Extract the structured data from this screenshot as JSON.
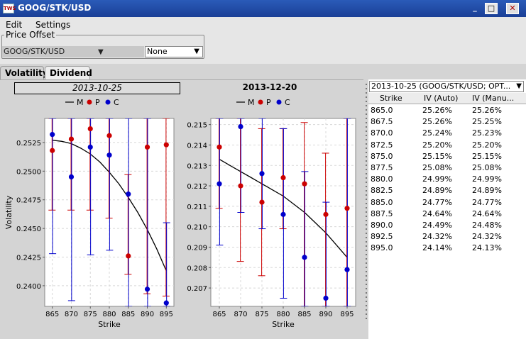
{
  "window": {
    "title": "GOOG/STK/USD",
    "icon": "app-icon"
  },
  "menu": {
    "items": [
      "Edit",
      "Settings"
    ]
  },
  "price_offset": {
    "label": "Price Offset",
    "symbol": "GOOG/STK/USD",
    "mode": "None"
  },
  "tabs": [
    {
      "label": "Volatility",
      "active": true
    },
    {
      "label": "Dividend",
      "active": false
    }
  ],
  "colors": {
    "mid": "#000000",
    "put": "#cc0000",
    "call": "#0000cc",
    "titlebar": "#1a3f96"
  },
  "chart_data": [
    {
      "type": "scatter",
      "title": "2013-10-25",
      "xlabel": "Strike",
      "ylabel": "Volatility",
      "legend": [
        "M",
        "P",
        "C"
      ],
      "legend_position": "top-center",
      "x": [
        865,
        870,
        875,
        880,
        885,
        890,
        895
      ],
      "xlim": [
        863,
        897
      ],
      "ylim": [
        0.2382,
        0.2546
      ],
      "yticks": [
        0.24,
        0.2425,
        0.245,
        0.2475,
        0.25,
        0.2525
      ],
      "ytick_labels": [
        "0.2400",
        "0.2425",
        "0.2450",
        "0.2475",
        "0.2500",
        "0.2525"
      ],
      "grid": true,
      "series": [
        {
          "name": "M",
          "style": "line",
          "points": [
            [
              865,
              0.2527
            ],
            [
              867.5,
              0.2526
            ],
            [
              870,
              0.2524
            ],
            [
              872.5,
              0.252
            ],
            [
              875,
              0.2515
            ],
            [
              877.5,
              0.2508
            ],
            [
              880,
              0.2499
            ],
            [
              882.5,
              0.2489
            ],
            [
              885,
              0.2477
            ],
            [
              887.5,
              0.2464
            ],
            [
              890,
              0.2449
            ],
            [
              892.5,
              0.2432
            ],
            [
              895,
              0.2413
            ]
          ]
        },
        {
          "name": "P",
          "values": [
            0.2518,
            0.2528,
            0.2537,
            0.2531,
            0.2426,
            0.2521,
            0.2523
          ],
          "err_low": [
            0.2466,
            0.2466,
            0.2466,
            0.2459,
            0.241,
            0.2393,
            0.2391
          ],
          "err_high": [
            0.2546,
            0.2546,
            0.2546,
            0.2546,
            0.2497,
            0.2546,
            0.2546
          ]
        },
        {
          "name": "C",
          "values": [
            0.2532,
            0.2495,
            0.2521,
            0.2514,
            0.248,
            0.2397,
            0.2385
          ],
          "err_low": [
            0.2428,
            0.2387,
            0.2427,
            0.2431,
            0.2382,
            0.2382,
            0.2382
          ],
          "err_high": [
            0.2546,
            0.2546,
            0.2546,
            0.2546,
            0.2546,
            0.2546,
            0.2455
          ]
        }
      ]
    },
    {
      "type": "scatter",
      "title": "2013-12-20",
      "xlabel": "Strike",
      "ylabel": "",
      "legend": [
        "M",
        "P",
        "C"
      ],
      "legend_position": "top-center",
      "x": [
        865,
        870,
        875,
        880,
        885,
        890,
        895
      ],
      "xlim": [
        863,
        897
      ],
      "ylim": [
        0.2061,
        0.2153
      ],
      "yticks": [
        0.207,
        0.208,
        0.209,
        0.21,
        0.211,
        0.212,
        0.213,
        0.214,
        0.215
      ],
      "ytick_labels": [
        "0.207",
        "0.208",
        "0.209",
        "0.210",
        "0.211",
        "0.212",
        "0.213",
        "0.214",
        "0.215"
      ],
      "grid": true,
      "series": [
        {
          "name": "M",
          "style": "line",
          "points": [
            [
              865,
              0.2133
            ],
            [
              867.5,
              0.213
            ],
            [
              870,
              0.2127
            ],
            [
              872.5,
              0.2124
            ],
            [
              875,
              0.2121
            ],
            [
              877.5,
              0.2118
            ],
            [
              880,
              0.2115
            ],
            [
              882.5,
              0.2111
            ],
            [
              885,
              0.2107
            ],
            [
              887.5,
              0.2102
            ],
            [
              890,
              0.2097
            ],
            [
              892.5,
              0.2091
            ],
            [
              895,
              0.2085
            ]
          ]
        },
        {
          "name": "P",
          "values": [
            0.2139,
            0.212,
            0.2112,
            0.2124,
            0.2121,
            0.2106,
            0.2109
          ],
          "err_low": [
            0.2109,
            0.2083,
            0.2076,
            0.2099,
            0.2061,
            0.2061,
            0.2061
          ],
          "err_high": [
            0.2153,
            0.2153,
            0.2148,
            0.2148,
            0.2151,
            0.2136,
            0.2153
          ]
        },
        {
          "name": "C",
          "values": [
            0.2121,
            0.2149,
            0.2126,
            0.2106,
            0.2085,
            0.2065,
            0.2079
          ],
          "err_low": [
            0.2091,
            0.2107,
            0.2099,
            0.2065,
            0.2061,
            0.2061,
            0.2061
          ],
          "err_high": [
            0.2153,
            0.2153,
            0.2153,
            0.2148,
            0.2127,
            0.2112,
            0.2153
          ]
        }
      ]
    }
  ],
  "table": {
    "expiry_select": "2013-10-25 (GOOG/STK/USD; OPT...",
    "headers": [
      "Strike",
      "IV (Auto)",
      "IV (Manu..."
    ],
    "rows": [
      [
        "865.0",
        "25.26%",
        "25.26%"
      ],
      [
        "867.5",
        "25.26%",
        "25.25%"
      ],
      [
        "870.0",
        "25.24%",
        "25.23%"
      ],
      [
        "872.5",
        "25.20%",
        "25.20%"
      ],
      [
        "875.0",
        "25.15%",
        "25.15%"
      ],
      [
        "877.5",
        "25.08%",
        "25.08%"
      ],
      [
        "880.0",
        "24.99%",
        "24.99%"
      ],
      [
        "882.5",
        "24.89%",
        "24.89%"
      ],
      [
        "885.0",
        "24.77%",
        "24.77%"
      ],
      [
        "887.5",
        "24.64%",
        "24.64%"
      ],
      [
        "890.0",
        "24.49%",
        "24.48%"
      ],
      [
        "892.5",
        "24.32%",
        "24.32%"
      ],
      [
        "895.0",
        "24.14%",
        "24.13%"
      ]
    ]
  }
}
